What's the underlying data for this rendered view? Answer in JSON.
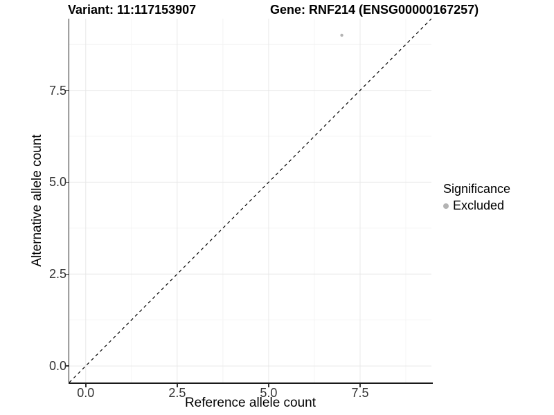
{
  "chart_data": {
    "type": "scatter",
    "titles": {
      "variant": "Variant: 11:117153907",
      "gene": "Gene: RNF214 (ENSG00000167257)"
    },
    "xlabel": "Reference allele count",
    "ylabel": "Alternative allele count",
    "xlim": [
      -0.45,
      9.45
    ],
    "ylim": [
      -0.45,
      9.45
    ],
    "x_ticks": [
      {
        "value": 0,
        "label": "0.0"
      },
      {
        "value": 2.5,
        "label": "2.5"
      },
      {
        "value": 5,
        "label": "5.0"
      },
      {
        "value": 7.5,
        "label": "7.5"
      }
    ],
    "y_ticks": [
      {
        "value": 0,
        "label": "0.0"
      },
      {
        "value": 2.5,
        "label": "2.5"
      },
      {
        "value": 5,
        "label": "5.0"
      },
      {
        "value": 7.5,
        "label": "7.5"
      }
    ],
    "x_minor": [
      1.25,
      3.75,
      6.25,
      8.75
    ],
    "y_minor": [
      1.25,
      3.75,
      6.25,
      8.75
    ],
    "grid": true,
    "points": [
      {
        "x": 7,
        "y": 9,
        "significance": "Excluded",
        "color": "#b3b3b3",
        "radius": 2.2
      }
    ],
    "abline": {
      "style": "dashed",
      "equation": "y = x",
      "from": [
        -0.45,
        -0.45
      ],
      "to": [
        9.45,
        9.45
      ],
      "color": "#000000"
    },
    "legend": {
      "title": "Significance",
      "position": "right",
      "entries": [
        {
          "label": "Excluded",
          "color": "#b3b3b3"
        }
      ]
    },
    "colors": {
      "grid_major": "#e8e8e8",
      "grid_minor": "#f4f4f4",
      "axis": "#1a1a1a",
      "tick_text": "#333333"
    }
  }
}
